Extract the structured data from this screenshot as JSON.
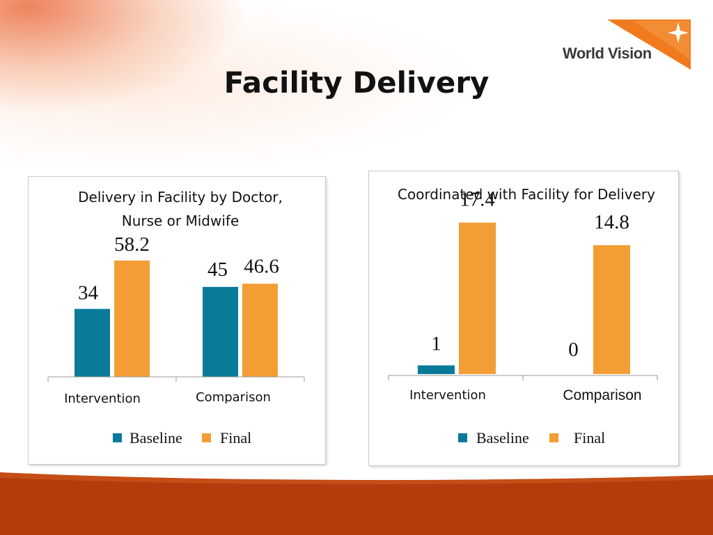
{
  "slide": {
    "title": "Facility Delivery",
    "logo_text": "World Vision"
  },
  "colors": {
    "baseline": "#0a7a9b",
    "final": "#f29e34",
    "footer": "#b23c0c",
    "logo_orange": "#f07b1f"
  },
  "chart_data": [
    {
      "type": "bar",
      "title_lines": [
        "Delivery in Facility by Doctor,",
        "Nurse or Midwife"
      ],
      "categories": [
        "Intervention",
        "Comparison"
      ],
      "series": [
        {
          "name": "Baseline",
          "values": [
            34,
            45
          ]
        },
        {
          "name": "Final",
          "values": [
            58.2,
            46.6
          ]
        }
      ],
      "value_labels": [
        [
          "34",
          "45"
        ],
        [
          "58.2",
          "46.6"
        ]
      ],
      "ylim": [
        0,
        100
      ],
      "legend": [
        "Baseline",
        "Final"
      ],
      "legend_position": "bottom",
      "grid": false
    },
    {
      "type": "bar",
      "title_lines": [
        "Coordinated with Facility for Delivery"
      ],
      "categories": [
        "Intervention",
        "Comparison"
      ],
      "series": [
        {
          "name": "Baseline",
          "values": [
            1,
            0
          ]
        },
        {
          "name": "Final",
          "values": [
            17.4,
            14.8
          ]
        }
      ],
      "value_labels": [
        [
          "1",
          "0"
        ],
        [
          "17.4",
          "14.8"
        ]
      ],
      "ylim": [
        0,
        22
      ],
      "legend": [
        "Baseline",
        "Final"
      ],
      "legend_position": "bottom",
      "grid": false
    }
  ]
}
